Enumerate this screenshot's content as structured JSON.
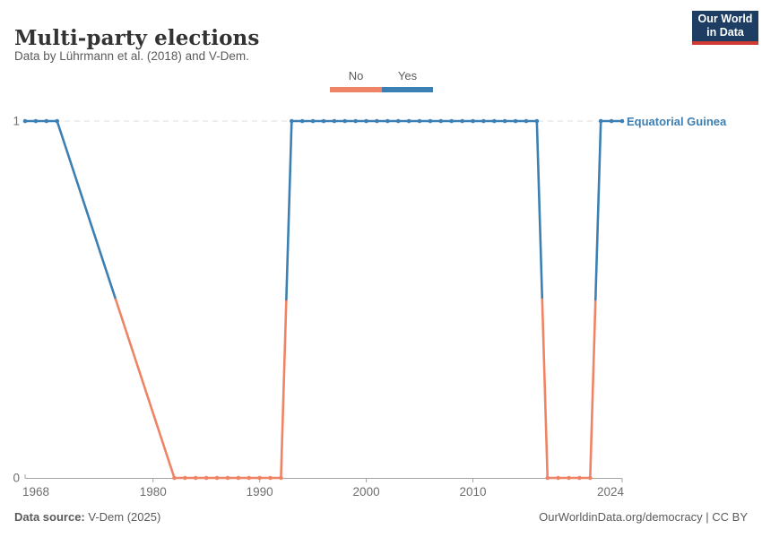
{
  "header": {
    "title": "Multi-party elections",
    "subtitle": "Data by Lührmann et al. (2018) and V-Dem.",
    "logo": {
      "line1": "Our World",
      "line2": "in Data"
    }
  },
  "legend": {
    "items": [
      {
        "label": "No",
        "value": 0,
        "color": "#EE8465"
      },
      {
        "label": "Yes",
        "value": 1,
        "color": "#3C7FB2"
      }
    ]
  },
  "chart_data": {
    "type": "line",
    "title": "Multi-party elections",
    "entity": "Equatorial Guinea",
    "ylabel": "",
    "xlabel": "",
    "xlim": [
      1968,
      2024
    ],
    "ylim": [
      0,
      1
    ],
    "x_ticks": [
      1968,
      1980,
      1990,
      2000,
      2010,
      2024
    ],
    "y_ticks": [
      0,
      1
    ],
    "gridline_at_y": 1,
    "legend_position": "top-center",
    "value_colors": {
      "0": "#EE8465",
      "1": "#3C7FB2"
    },
    "series": [
      {
        "name": "Equatorial Guinea",
        "points": [
          [
            1968,
            1
          ],
          [
            1969,
            1
          ],
          [
            1970,
            1
          ],
          [
            1971,
            1
          ],
          [
            1982,
            0
          ],
          [
            1983,
            0
          ],
          [
            1984,
            0
          ],
          [
            1985,
            0
          ],
          [
            1986,
            0
          ],
          [
            1987,
            0
          ],
          [
            1988,
            0
          ],
          [
            1989,
            0
          ],
          [
            1990,
            0
          ],
          [
            1991,
            0
          ],
          [
            1992,
            0
          ],
          [
            1993,
            1
          ],
          [
            1994,
            1
          ],
          [
            1995,
            1
          ],
          [
            1996,
            1
          ],
          [
            1997,
            1
          ],
          [
            1998,
            1
          ],
          [
            1999,
            1
          ],
          [
            2000,
            1
          ],
          [
            2001,
            1
          ],
          [
            2002,
            1
          ],
          [
            2003,
            1
          ],
          [
            2004,
            1
          ],
          [
            2005,
            1
          ],
          [
            2006,
            1
          ],
          [
            2007,
            1
          ],
          [
            2008,
            1
          ],
          [
            2009,
            1
          ],
          [
            2010,
            1
          ],
          [
            2011,
            1
          ],
          [
            2012,
            1
          ],
          [
            2013,
            1
          ],
          [
            2014,
            1
          ],
          [
            2015,
            1
          ],
          [
            2016,
            1
          ],
          [
            2017,
            0
          ],
          [
            2018,
            0
          ],
          [
            2019,
            0
          ],
          [
            2020,
            0
          ],
          [
            2021,
            0
          ],
          [
            2022,
            1
          ],
          [
            2023,
            1
          ],
          [
            2024,
            1
          ]
        ]
      }
    ]
  },
  "footer": {
    "source_label": "Data source:",
    "source_value": "V-Dem (2025)",
    "credit": "OurWorldinData.org/democracy | CC BY"
  }
}
